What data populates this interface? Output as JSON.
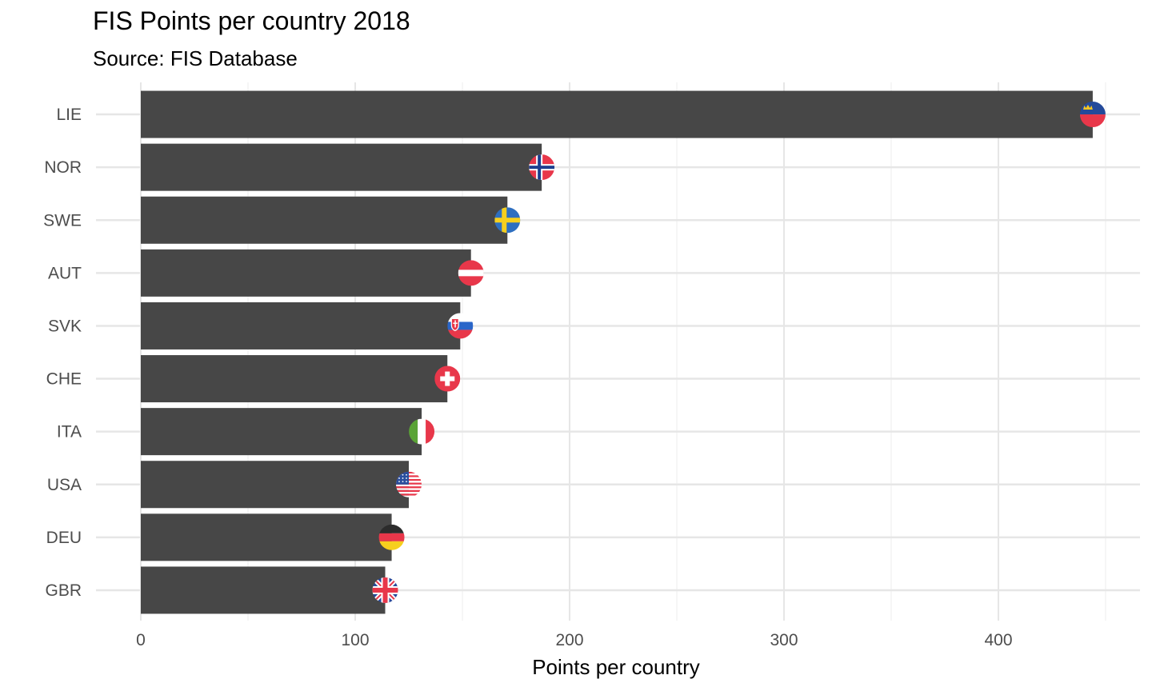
{
  "chart_data": {
    "type": "bar",
    "orientation": "horizontal",
    "title": "FIS Points per country 2018",
    "subtitle": "Source: FIS Database",
    "xlabel": "Points per country",
    "ylabel": "",
    "xlim": [
      0,
      450
    ],
    "x_ticks": [
      0,
      100,
      200,
      300,
      400
    ],
    "x_tick_labels": [
      "0",
      "100",
      "200",
      "300",
      "400"
    ],
    "categories": [
      "LIE",
      "NOR",
      "SWE",
      "AUT",
      "SVK",
      "CHE",
      "ITA",
      "USA",
      "DEU",
      "GBR"
    ],
    "values": [
      444,
      187,
      171,
      154,
      149,
      143,
      131,
      125,
      117,
      114
    ],
    "flags": [
      "liechtenstein-flag",
      "norway-flag",
      "sweden-flag",
      "austria-flag",
      "slovakia-flag",
      "switzerland-flag",
      "italy-flag",
      "usa-flag",
      "germany-flag",
      "uk-flag"
    ],
    "bar_color": "#474747",
    "grid": true,
    "legend": "none"
  }
}
